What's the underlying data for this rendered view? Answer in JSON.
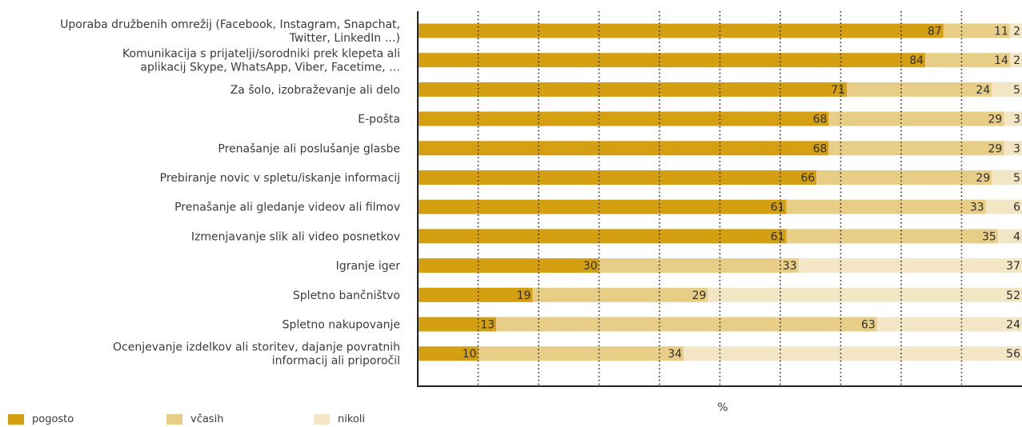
{
  "chart_data": {
    "type": "bar",
    "orientation": "horizontal",
    "stacked": true,
    "xlabel": "%",
    "xlim": [
      0,
      100
    ],
    "grid": "vertical dotted",
    "legend_position": "bottom-left",
    "categories": [
      [
        "Uporaba družbenih omrežij (Facebook, Instagram, Snapchat,",
        "Twitter, LinkedIn …)"
      ],
      [
        "Komunikacija s prijatelji/sorodniki prek klepeta ali",
        "aplikacij Skype, WhatsApp, Viber, Facetime, …"
      ],
      [
        "Za šolo, izobraževanje ali delo"
      ],
      [
        "E-pošta"
      ],
      [
        "Prenašanje ali poslušanje glasbe"
      ],
      [
        "Prebiranje novic v spletu/iskanje informacij"
      ],
      [
        "Prenašanje ali gledanje videov ali filmov"
      ],
      [
        "Izmenjavanje slik ali video posnetkov"
      ],
      [
        "Igranje iger"
      ],
      [
        "Spletno bančništvo"
      ],
      [
        "Spletno nakupovanje"
      ],
      [
        "Ocenjevanje izdelkov ali storitev, dajanje povratnih",
        "informacij ali priporočil"
      ]
    ],
    "series": [
      {
        "name": "pogosto",
        "color": "#d4a011",
        "values": [
          87,
          84,
          71,
          68,
          68,
          66,
          61,
          61,
          30,
          19,
          13,
          10
        ]
      },
      {
        "name": "včasih",
        "color": "#e8cd86",
        "values": [
          11,
          14,
          24,
          29,
          29,
          29,
          33,
          35,
          33,
          29,
          63,
          34
        ]
      },
      {
        "name": "nikoli",
        "color": "#f3e6c4",
        "values": [
          2,
          2,
          5,
          3,
          3,
          5,
          6,
          4,
          37,
          52,
          24,
          56
        ]
      }
    ]
  }
}
